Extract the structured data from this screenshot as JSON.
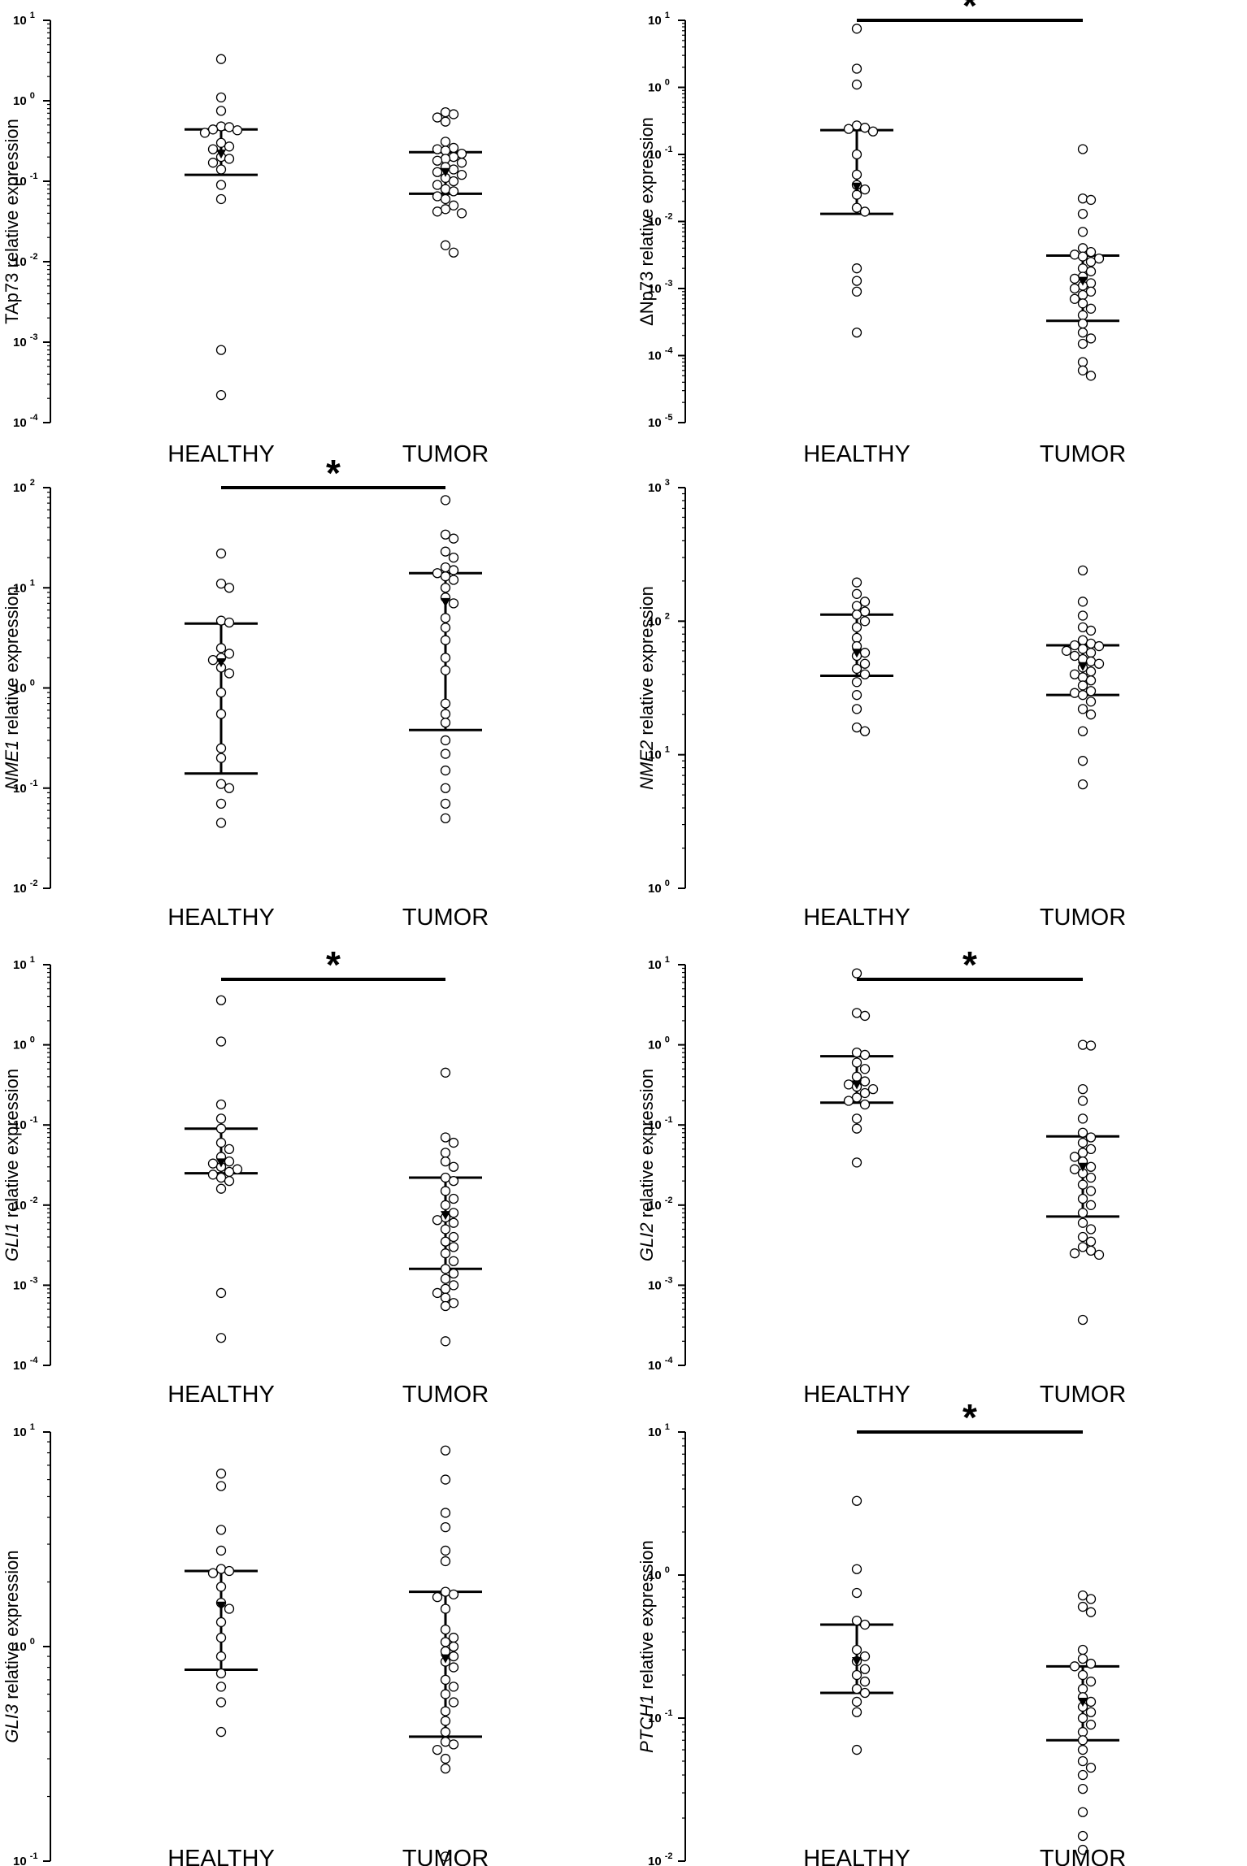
{
  "figure": {
    "group_labels": [
      "HEALTHY",
      "TUMOR"
    ],
    "axis_label_suffix": " relative expression"
  },
  "chart_data": [
    {
      "type": "scatter",
      "gene": "TAp73",
      "italic": false,
      "ylabel": "TAp73 relative expression",
      "categories": [
        "HEALTHY",
        "TUMOR"
      ],
      "yscale": "log",
      "ylim": [
        0.0001,
        10
      ],
      "tick_exponents": [
        -4,
        -3,
        -2,
        -1,
        0,
        1
      ],
      "significance": null,
      "series": [
        {
          "name": "HEALTHY",
          "median": 0.22,
          "iqr": [
            0.12,
            0.44
          ],
          "values": [
            3.3,
            1.1,
            0.75,
            0.48,
            0.47,
            0.44,
            0.43,
            0.4,
            0.3,
            0.27,
            0.25,
            0.2,
            0.19,
            0.17,
            0.14,
            0.09,
            0.06,
            0.0008,
            0.00022
          ]
        },
        {
          "name": "TUMOR",
          "median": 0.13,
          "iqr": [
            0.07,
            0.23
          ],
          "values": [
            0.72,
            0.68,
            0.62,
            0.55,
            0.31,
            0.26,
            0.25,
            0.24,
            0.22,
            0.2,
            0.19,
            0.18,
            0.17,
            0.15,
            0.14,
            0.13,
            0.12,
            0.11,
            0.1,
            0.09,
            0.08,
            0.075,
            0.065,
            0.06,
            0.05,
            0.045,
            0.042,
            0.04,
            0.016,
            0.013
          ]
        }
      ]
    },
    {
      "type": "scatter",
      "gene": "ΔNp73",
      "italic": false,
      "ylabel": "ΔNp73 relative expression",
      "categories": [
        "HEALTHY",
        "TUMOR"
      ],
      "yscale": "log",
      "ylim": [
        1e-05,
        10
      ],
      "tick_exponents": [
        -5,
        -4,
        -3,
        -2,
        -1,
        0,
        1
      ],
      "significance": "*",
      "series": [
        {
          "name": "HEALTHY",
          "median": 0.033,
          "iqr": [
            0.013,
            0.23
          ],
          "values": [
            7.5,
            1.9,
            1.1,
            0.27,
            0.25,
            0.24,
            0.22,
            0.1,
            0.05,
            0.035,
            0.03,
            0.025,
            0.016,
            0.014,
            0.002,
            0.0013,
            0.0009,
            0.00022
          ]
        },
        {
          "name": "TUMOR",
          "median": 0.0013,
          "iqr": [
            0.00033,
            0.0031
          ],
          "values": [
            0.12,
            0.022,
            0.021,
            0.013,
            0.007,
            0.004,
            0.0035,
            0.0032,
            0.003,
            0.0028,
            0.0025,
            0.002,
            0.0018,
            0.0015,
            0.0014,
            0.0012,
            0.0011,
            0.001,
            0.0009,
            0.0008,
            0.0007,
            0.0006,
            0.0005,
            0.0004,
            0.0003,
            0.00022,
            0.00018,
            0.00015,
            8e-05,
            6e-05,
            5e-05
          ]
        }
      ]
    },
    {
      "type": "scatter",
      "gene": "NME1",
      "italic": true,
      "ylabel": "NME1 relative expression",
      "categories": [
        "HEALTHY",
        "TUMOR"
      ],
      "yscale": "log",
      "ylim": [
        0.01,
        100
      ],
      "tick_exponents": [
        -2,
        -1,
        0,
        1,
        2
      ],
      "significance": "*",
      "series": [
        {
          "name": "HEALTHY",
          "median": 1.8,
          "iqr": [
            0.14,
            4.4
          ],
          "values": [
            22,
            11,
            10,
            4.7,
            4.5,
            2.5,
            2.2,
            2.0,
            1.9,
            1.6,
            1.4,
            0.9,
            0.55,
            0.25,
            0.2,
            0.11,
            0.1,
            0.07,
            0.045
          ]
        },
        {
          "name": "TUMOR",
          "median": 7.2,
          "iqr": [
            0.38,
            14
          ],
          "values": [
            75,
            34,
            31,
            23,
            20,
            16,
            15,
            14,
            13,
            12,
            10,
            8,
            7,
            5,
            4,
            3,
            2,
            1.5,
            0.7,
            0.55,
            0.45,
            0.3,
            0.22,
            0.15,
            0.1,
            0.07,
            0.05
          ]
        }
      ]
    },
    {
      "type": "scatter",
      "gene": "NME2",
      "italic": true,
      "ylabel": "NME2 relative expression",
      "categories": [
        "HEALTHY",
        "TUMOR"
      ],
      "yscale": "log",
      "ylim": [
        1,
        1000
      ],
      "tick_exponents": [
        0,
        1,
        2,
        3
      ],
      "significance": null,
      "series": [
        {
          "name": "HEALTHY",
          "median": 58,
          "iqr": [
            39,
            112
          ],
          "values": [
            195,
            160,
            140,
            130,
            118,
            112,
            100,
            90,
            75,
            65,
            58,
            55,
            48,
            44,
            40,
            35,
            28,
            22,
            16,
            15
          ]
        },
        {
          "name": "TUMOR",
          "median": 46,
          "iqr": [
            28,
            66
          ],
          "values": [
            240,
            140,
            110,
            90,
            85,
            72,
            68,
            66,
            65,
            62,
            60,
            58,
            55,
            52,
            50,
            48,
            45,
            42,
            40,
            38,
            36,
            33,
            30,
            29,
            28,
            25,
            22,
            20,
            15,
            9,
            6
          ]
        }
      ]
    },
    {
      "type": "scatter",
      "gene": "GLI1",
      "italic": true,
      "ylabel": "GLI1 relative expression",
      "categories": [
        "HEALTHY",
        "TUMOR"
      ],
      "yscale": "log",
      "ylim": [
        0.0001,
        10
      ],
      "tick_exponents": [
        -4,
        -3,
        -2,
        -1,
        0,
        1
      ],
      "significance": "*",
      "series": [
        {
          "name": "HEALTHY",
          "median": 0.034,
          "iqr": [
            0.025,
            0.09
          ],
          "values": [
            3.6,
            1.1,
            0.18,
            0.12,
            0.09,
            0.06,
            0.05,
            0.04,
            0.035,
            0.033,
            0.03,
            0.028,
            0.026,
            0.024,
            0.022,
            0.02,
            0.016,
            0.0008,
            0.00022
          ]
        },
        {
          "name": "TUMOR",
          "median": 0.0075,
          "iqr": [
            0.0016,
            0.022
          ],
          "values": [
            0.45,
            0.07,
            0.06,
            0.045,
            0.035,
            0.03,
            0.022,
            0.02,
            0.015,
            0.012,
            0.01,
            0.008,
            0.007,
            0.0065,
            0.006,
            0.005,
            0.004,
            0.0035,
            0.003,
            0.0025,
            0.002,
            0.0016,
            0.0014,
            0.0012,
            0.001,
            0.0009,
            0.0008,
            0.0007,
            0.0006,
            0.00055,
            0.0002
          ]
        }
      ]
    },
    {
      "type": "scatter",
      "gene": "GLI2",
      "italic": true,
      "ylabel": "GLI2 relative expression",
      "categories": [
        "HEALTHY",
        "TUMOR"
      ],
      "yscale": "log",
      "ylim": [
        0.0001,
        10
      ],
      "tick_exponents": [
        -4,
        -3,
        -2,
        -1,
        0,
        1
      ],
      "significance": "*",
      "series": [
        {
          "name": "HEALTHY",
          "median": 0.32,
          "iqr": [
            0.19,
            0.72
          ],
          "values": [
            7.8,
            2.5,
            2.3,
            0.8,
            0.75,
            0.6,
            0.5,
            0.4,
            0.35,
            0.32,
            0.3,
            0.28,
            0.25,
            0.22,
            0.2,
            0.18,
            0.12,
            0.09,
            0.034
          ]
        },
        {
          "name": "TUMOR",
          "median": 0.03,
          "iqr": [
            0.0072,
            0.072
          ],
          "values": [
            1.0,
            0.98,
            0.28,
            0.2,
            0.12,
            0.08,
            0.07,
            0.06,
            0.05,
            0.045,
            0.04,
            0.035,
            0.03,
            0.028,
            0.025,
            0.022,
            0.018,
            0.015,
            0.012,
            0.01,
            0.008,
            0.006,
            0.005,
            0.004,
            0.0035,
            0.003,
            0.0027,
            0.0025,
            0.0024,
            0.00037
          ]
        }
      ]
    },
    {
      "type": "scatter",
      "gene": "GLI3",
      "italic": true,
      "ylabel": "GLI3 relative expression",
      "categories": [
        "HEALTHY",
        "TUMOR"
      ],
      "yscale": "log",
      "ylim": [
        0.1,
        10
      ],
      "tick_exponents": [
        -1,
        0,
        1
      ],
      "significance": null,
      "series": [
        {
          "name": "HEALTHY",
          "median": 1.55,
          "iqr": [
            0.78,
            2.25
          ],
          "values": [
            6.4,
            5.6,
            3.5,
            2.8,
            2.3,
            2.25,
            2.2,
            1.9,
            1.6,
            1.5,
            1.3,
            1.1,
            0.9,
            0.75,
            0.65,
            0.55,
            0.4
          ]
        },
        {
          "name": "TUMOR",
          "median": 0.88,
          "iqr": [
            0.38,
            1.8
          ],
          "values": [
            8.2,
            6.0,
            4.2,
            3.6,
            2.8,
            2.5,
            1.8,
            1.75,
            1.7,
            1.5,
            1.2,
            1.1,
            1.05,
            1.0,
            0.95,
            0.9,
            0.85,
            0.8,
            0.7,
            0.65,
            0.6,
            0.55,
            0.5,
            0.45,
            0.4,
            0.36,
            0.35,
            0.33,
            0.3,
            0.27,
            0.105
          ]
        }
      ]
    },
    {
      "type": "scatter",
      "gene": "PTCH1",
      "italic": true,
      "ylabel": "PTCH1 relative expression",
      "categories": [
        "HEALTHY",
        "TUMOR"
      ],
      "yscale": "log",
      "ylim": [
        0.01,
        10
      ],
      "tick_exponents": [
        -2,
        -1,
        0,
        1
      ],
      "significance": "*",
      "series": [
        {
          "name": "HEALTHY",
          "median": 0.25,
          "iqr": [
            0.15,
            0.45
          ],
          "values": [
            3.3,
            1.1,
            0.75,
            0.48,
            0.45,
            0.3,
            0.27,
            0.25,
            0.22,
            0.2,
            0.18,
            0.16,
            0.15,
            0.13,
            0.11,
            0.06
          ]
        },
        {
          "name": "TUMOR",
          "median": 0.13,
          "iqr": [
            0.07,
            0.23
          ],
          "values": [
            0.72,
            0.68,
            0.6,
            0.55,
            0.3,
            0.26,
            0.24,
            0.23,
            0.2,
            0.18,
            0.16,
            0.14,
            0.13,
            0.12,
            0.11,
            0.1,
            0.09,
            0.08,
            0.07,
            0.06,
            0.05,
            0.045,
            0.04,
            0.032,
            0.022,
            0.015,
            0.012
          ]
        }
      ]
    }
  ]
}
